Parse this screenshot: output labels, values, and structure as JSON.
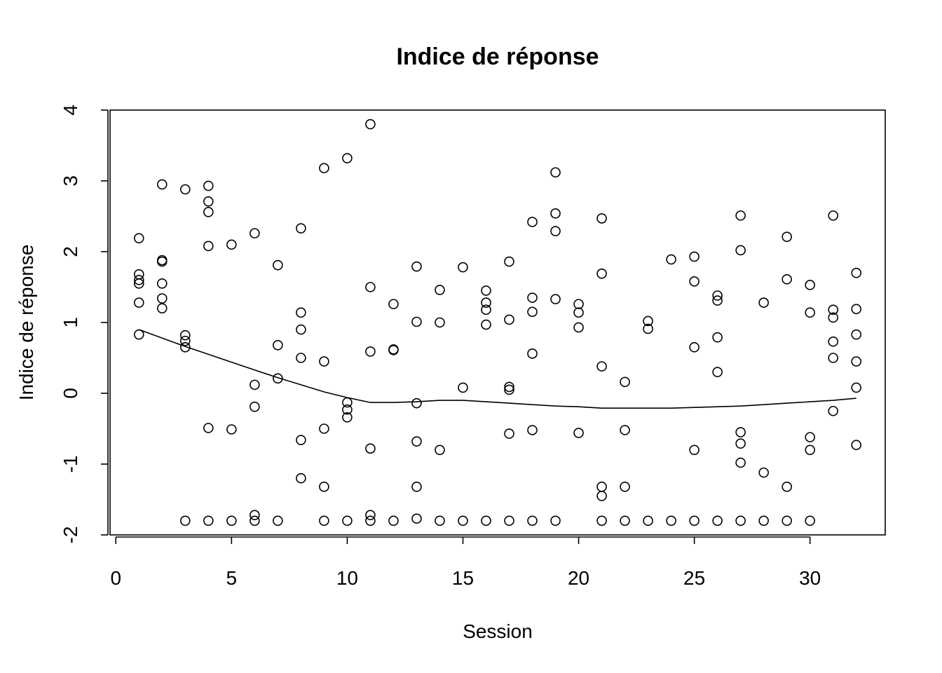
{
  "chart_data": {
    "type": "scatter",
    "title": "Indice de réponse",
    "xlabel": "Session",
    "ylabel": "Indice de réponse",
    "xlim": [
      -0.25,
      33.25
    ],
    "ylim": [
      -2,
      4
    ],
    "x_ticks": [
      0,
      5,
      10,
      15,
      20,
      25,
      30
    ],
    "y_ticks": [
      -2,
      -1,
      0,
      1,
      2,
      3,
      4
    ],
    "grid": false,
    "legend": "none",
    "points": [
      [
        1,
        2.19
      ],
      [
        1,
        1.68
      ],
      [
        1,
        1.6
      ],
      [
        1,
        1.55
      ],
      [
        1,
        1.28
      ],
      [
        1,
        0.83
      ],
      [
        2,
        2.95
      ],
      [
        2,
        1.88
      ],
      [
        2,
        1.86
      ],
      [
        2,
        1.55
      ],
      [
        2,
        1.34
      ],
      [
        2,
        1.2
      ],
      [
        3,
        2.88
      ],
      [
        3,
        0.82
      ],
      [
        3,
        0.74
      ],
      [
        3,
        0.65
      ],
      [
        3,
        -1.8
      ],
      [
        4,
        2.93
      ],
      [
        4,
        2.71
      ],
      [
        4,
        2.56
      ],
      [
        4,
        2.08
      ],
      [
        4,
        -0.49
      ],
      [
        4,
        -1.8
      ],
      [
        5,
        2.1
      ],
      [
        5,
        -0.51
      ],
      [
        5,
        -1.8
      ],
      [
        6,
        2.26
      ],
      [
        6,
        0.12
      ],
      [
        6,
        -0.19
      ],
      [
        6,
        -1.72
      ],
      [
        6,
        -1.8
      ],
      [
        7,
        1.81
      ],
      [
        7,
        0.68
      ],
      [
        7,
        0.21
      ],
      [
        7,
        -1.8
      ],
      [
        8,
        2.33
      ],
      [
        8,
        1.14
      ],
      [
        8,
        0.9
      ],
      [
        8,
        0.5
      ],
      [
        8,
        -0.66
      ],
      [
        8,
        -1.2
      ],
      [
        9,
        3.18
      ],
      [
        9,
        0.45
      ],
      [
        9,
        -0.5
      ],
      [
        9,
        -1.32
      ],
      [
        9,
        -1.8
      ],
      [
        10,
        3.32
      ],
      [
        10,
        -0.13
      ],
      [
        10,
        -0.23
      ],
      [
        10,
        -0.34
      ],
      [
        10,
        -1.8
      ],
      [
        11,
        3.8
      ],
      [
        11,
        1.5
      ],
      [
        11,
        0.59
      ],
      [
        11,
        -0.78
      ],
      [
        11,
        -1.72
      ],
      [
        11,
        -1.8
      ],
      [
        12,
        1.26
      ],
      [
        12,
        0.62
      ],
      [
        12,
        0.61
      ],
      [
        12,
        -1.8
      ],
      [
        13,
        1.79
      ],
      [
        13,
        1.01
      ],
      [
        13,
        -0.14
      ],
      [
        13,
        -0.68
      ],
      [
        13,
        -1.32
      ],
      [
        13,
        -1.77
      ],
      [
        14,
        1.46
      ],
      [
        14,
        1.0
      ],
      [
        14,
        -0.8
      ],
      [
        14,
        -1.8
      ],
      [
        15,
        1.78
      ],
      [
        15,
        0.08
      ],
      [
        15,
        -1.8
      ],
      [
        16,
        1.45
      ],
      [
        16,
        1.28
      ],
      [
        16,
        1.18
      ],
      [
        16,
        0.97
      ],
      [
        16,
        -1.8
      ],
      [
        17,
        1.86
      ],
      [
        17,
        1.04
      ],
      [
        17,
        0.09
      ],
      [
        17,
        0.05
      ],
      [
        17,
        -0.57
      ],
      [
        17,
        -1.8
      ],
      [
        18,
        2.42
      ],
      [
        18,
        1.35
      ],
      [
        18,
        1.15
      ],
      [
        18,
        0.56
      ],
      [
        18,
        -0.52
      ],
      [
        18,
        -1.8
      ],
      [
        19,
        3.12
      ],
      [
        19,
        2.54
      ],
      [
        19,
        2.29
      ],
      [
        19,
        1.33
      ],
      [
        19,
        -1.8
      ],
      [
        20,
        1.26
      ],
      [
        20,
        1.14
      ],
      [
        20,
        0.93
      ],
      [
        20,
        -0.56
      ],
      [
        21,
        2.47
      ],
      [
        21,
        1.69
      ],
      [
        21,
        0.38
      ],
      [
        21,
        -1.32
      ],
      [
        21,
        -1.45
      ],
      [
        21,
        -1.8
      ],
      [
        22,
        0.16
      ],
      [
        22,
        -0.52
      ],
      [
        22,
        -1.32
      ],
      [
        22,
        -1.8
      ],
      [
        23,
        1.02
      ],
      [
        23,
        0.91
      ],
      [
        23,
        -1.8
      ],
      [
        24,
        1.89
      ],
      [
        24,
        -1.8
      ],
      [
        25,
        1.93
      ],
      [
        25,
        1.58
      ],
      [
        25,
        0.65
      ],
      [
        25,
        -0.8
      ],
      [
        25,
        -1.8
      ],
      [
        26,
        1.38
      ],
      [
        26,
        1.31
      ],
      [
        26,
        0.79
      ],
      [
        26,
        0.3
      ],
      [
        26,
        -1.8
      ],
      [
        27,
        2.51
      ],
      [
        27,
        2.02
      ],
      [
        27,
        -0.55
      ],
      [
        27,
        -0.71
      ],
      [
        27,
        -0.98
      ],
      [
        27,
        -1.8
      ],
      [
        28,
        1.28
      ],
      [
        28,
        -1.12
      ],
      [
        28,
        -1.8
      ],
      [
        29,
        2.21
      ],
      [
        29,
        1.61
      ],
      [
        29,
        -1.32
      ],
      [
        29,
        -1.8
      ],
      [
        30,
        1.53
      ],
      [
        30,
        1.14
      ],
      [
        30,
        -0.62
      ],
      [
        30,
        -0.8
      ],
      [
        30,
        -1.8
      ],
      [
        31,
        2.51
      ],
      [
        31,
        1.18
      ],
      [
        31,
        1.07
      ],
      [
        31,
        0.73
      ],
      [
        31,
        0.5
      ],
      [
        31,
        -0.25
      ],
      [
        32,
        1.7
      ],
      [
        32,
        1.19
      ],
      [
        32,
        0.83
      ],
      [
        32,
        0.45
      ],
      [
        32,
        0.08
      ],
      [
        32,
        -0.73
      ]
    ],
    "smooth_line": [
      [
        1,
        0.9
      ],
      [
        2,
        0.78
      ],
      [
        3,
        0.66
      ],
      [
        4,
        0.55
      ],
      [
        5,
        0.44
      ],
      [
        6,
        0.33
      ],
      [
        7,
        0.22
      ],
      [
        8,
        0.12
      ],
      [
        9,
        0.02
      ],
      [
        10,
        -0.06
      ],
      [
        11,
        -0.13
      ],
      [
        12,
        -0.13
      ],
      [
        13,
        -0.12
      ],
      [
        14,
        -0.1
      ],
      [
        15,
        -0.1
      ],
      [
        16,
        -0.12
      ],
      [
        17,
        -0.14
      ],
      [
        18,
        -0.16
      ],
      [
        19,
        -0.18
      ],
      [
        20,
        -0.19
      ],
      [
        21,
        -0.21
      ],
      [
        22,
        -0.21
      ],
      [
        23,
        -0.21
      ],
      [
        24,
        -0.21
      ],
      [
        25,
        -0.2
      ],
      [
        26,
        -0.19
      ],
      [
        27,
        -0.18
      ],
      [
        28,
        -0.16
      ],
      [
        29,
        -0.14
      ],
      [
        30,
        -0.12
      ],
      [
        31,
        -0.1
      ],
      [
        32,
        -0.07
      ]
    ]
  }
}
